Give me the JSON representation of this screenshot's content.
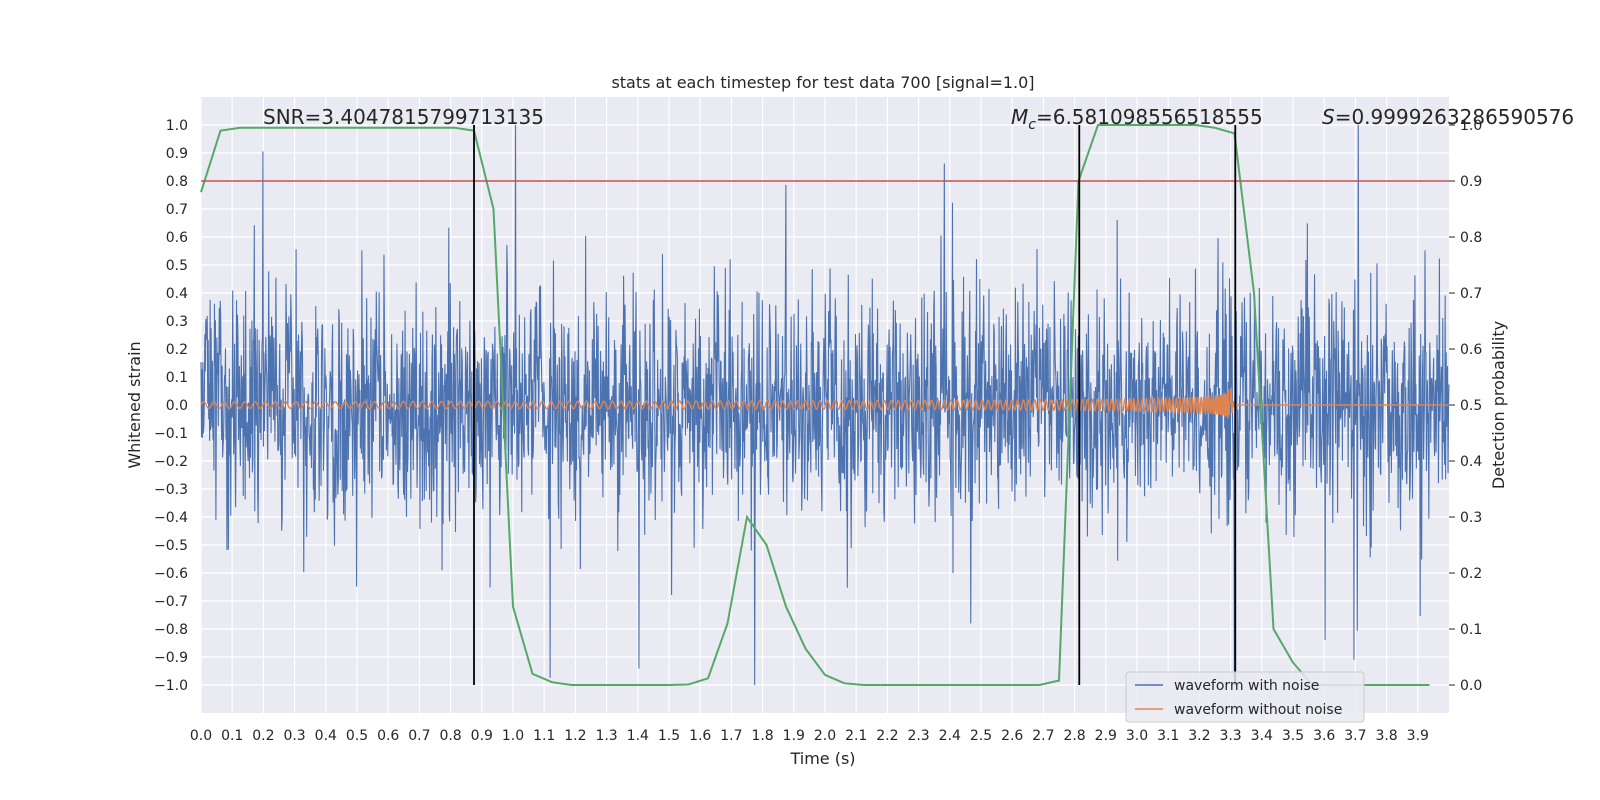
{
  "chart_data": {
    "type": "line",
    "title": "stats at each timestep for test data 700 [signal=1.0]",
    "xlabel": "Time (s)",
    "ylabel_left": "Whitened strain",
    "ylabel_right": "Detection probability",
    "xlim": [
      0.0,
      4.0
    ],
    "ylim_left": [
      -1.1,
      1.1
    ],
    "ylim_right": [
      -0.05,
      1.05
    ],
    "x_ticks": [
      "0.0",
      "0.1",
      "0.2",
      "0.3",
      "0.4",
      "0.5",
      "0.6",
      "0.7",
      "0.8",
      "0.9",
      "1.0",
      "1.1",
      "1.2",
      "1.3",
      "1.4",
      "1.5",
      "1.6",
      "1.7",
      "1.8",
      "1.9",
      "2.0",
      "2.1",
      "2.2",
      "2.3",
      "2.4",
      "2.5",
      "2.6",
      "2.7",
      "2.8",
      "2.9",
      "3.0",
      "3.1",
      "3.2",
      "3.3",
      "3.4",
      "3.5",
      "3.6",
      "3.7",
      "3.8",
      "3.9"
    ],
    "y_ticks_left": [
      "1.0",
      "0.9",
      "0.8",
      "0.7",
      "0.6",
      "0.5",
      "0.4",
      "0.3",
      "0.2",
      "0.1",
      "0.0",
      "−0.1",
      "−0.2",
      "−0.3",
      "−0.4",
      "−0.5",
      "−0.6",
      "−0.7",
      "−0.8",
      "−0.9",
      "−1.0"
    ],
    "y_ticks_right": [
      "1.0",
      "0.9",
      "0.8",
      "0.7",
      "0.6",
      "0.5",
      "0.4",
      "0.3",
      "0.2",
      "0.1",
      "0.0"
    ],
    "annotations": {
      "snr": "SNR=3.4047815799713135",
      "mc_symbol": "M",
      "mc_sub": "c",
      "mc_value": "=6.581098556518555",
      "s_symbol": "S",
      "s_value": "=0.9999263286590576"
    },
    "threshold_right": 0.9,
    "vertical_lines_x": [
      0.875,
      2.815,
      3.315
    ],
    "series": [
      {
        "name": "waveform with noise",
        "color": "#4c72b0",
        "kind": "noise",
        "description_values": "whitened strain, mostly within ±0.5 with spikes to about ±1.0"
      },
      {
        "name": "waveform without noise",
        "color": "#dd8452",
        "kind": "chirp",
        "f0_hz": 30,
        "merger_time": 3.3,
        "amplitude_start": 0.012,
        "amplitude_merger": 0.1
      },
      {
        "name": "detection probability",
        "color": "#55a868",
        "axis": "right",
        "t": [
          0.0,
          0.0625,
          0.125,
          0.1875,
          0.25,
          0.3125,
          0.375,
          0.4375,
          0.5,
          0.5625,
          0.625,
          0.6875,
          0.75,
          0.8125,
          0.875,
          0.9375,
          1.0,
          1.0625,
          1.125,
          1.1875,
          1.25,
          1.3125,
          1.375,
          1.4375,
          1.5,
          1.5625,
          1.625,
          1.6875,
          1.75,
          1.8125,
          1.875,
          1.9375,
          2.0,
          2.0625,
          2.125,
          2.1875,
          2.25,
          2.3125,
          2.375,
          2.4375,
          2.5,
          2.5625,
          2.625,
          2.6875,
          2.75,
          2.8125,
          2.875,
          2.9375,
          3.0,
          3.0625,
          3.125,
          3.1875,
          3.25,
          3.3125,
          3.375,
          3.4375,
          3.5,
          3.5625,
          3.625,
          3.6875,
          3.75,
          3.8125,
          3.875,
          3.9375
        ],
        "p": [
          0.88,
          0.99,
          0.995,
          0.995,
          0.995,
          0.995,
          0.995,
          0.995,
          0.995,
          0.995,
          0.995,
          0.995,
          0.995,
          0.995,
          0.99,
          0.85,
          0.14,
          0.02,
          0.005,
          0.0,
          0.0,
          0.0,
          0.0,
          0.0,
          0.0,
          0.001,
          0.012,
          0.11,
          0.3,
          0.25,
          0.14,
          0.065,
          0.018,
          0.003,
          0.0,
          0.0,
          0.0,
          0.0,
          0.0,
          0.0,
          0.0,
          0.0,
          0.0,
          0.0,
          0.008,
          0.9,
          1.0,
          1.0,
          1.0,
          1.0,
          1.0,
          1.0,
          0.995,
          0.985,
          0.7,
          0.1,
          0.04,
          0.0,
          0.0,
          0.0,
          0.0,
          0.0,
          0.0,
          0.0
        ]
      }
    ],
    "legend": {
      "placement": "lower-right",
      "entries": [
        "waveform with noise",
        "waveform without noise"
      ]
    }
  }
}
